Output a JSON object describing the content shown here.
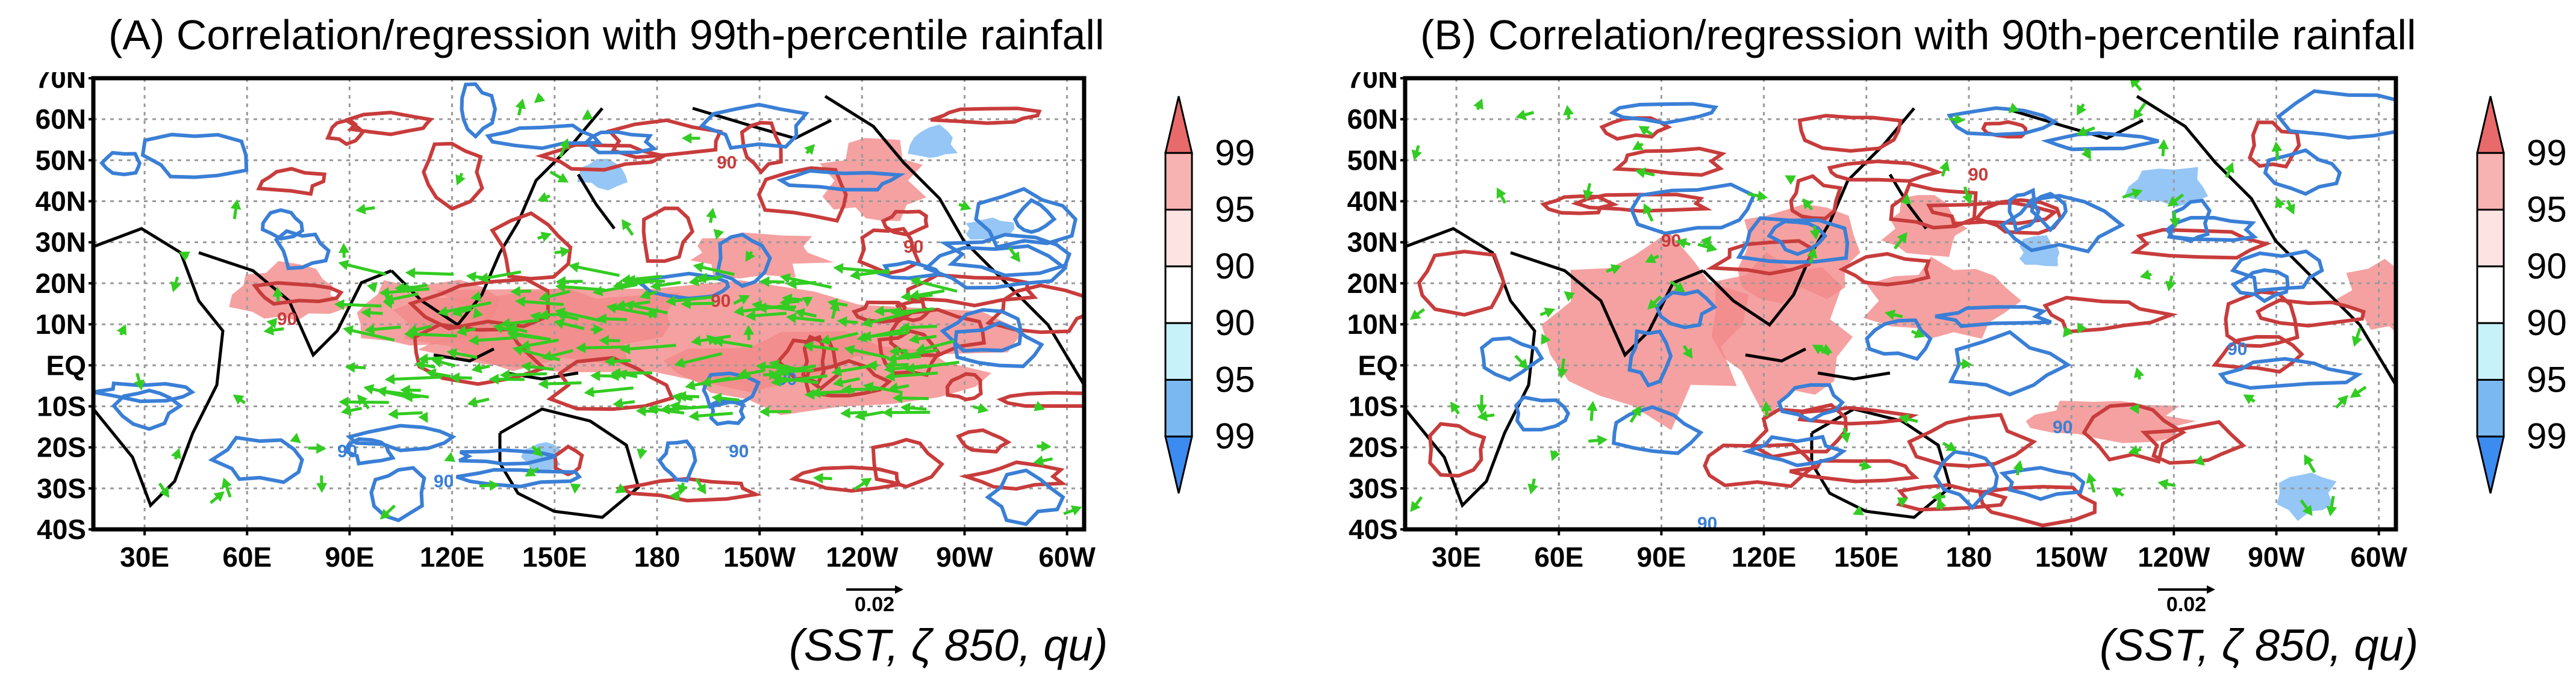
{
  "figure": {
    "latitudes": [
      "70N",
      "60N",
      "50N",
      "40N",
      "30N",
      "20N",
      "10N",
      "EQ",
      "10S",
      "20S",
      "30S",
      "40S"
    ],
    "longitudes": [
      "30E",
      "60E",
      "90E",
      "120E",
      "150E",
      "180",
      "150W",
      "120W",
      "90W",
      "60W"
    ],
    "colorbar_labels": [
      "99",
      "95",
      "90",
      "90",
      "95",
      "99"
    ],
    "colorbar_colors": [
      "#e86a6a",
      "#f7b3b1",
      "#fde3e1",
      "#ffffff",
      "#c8f2fa",
      "#7ab8f2",
      "#3b8bf0"
    ],
    "colors": {
      "positive_contour": "#c83c3c",
      "negative_contour": "#3a7fd6",
      "vector": "#33cc22",
      "shade_pos": "#f28a8a",
      "shade_neg": "#7ab8f2"
    },
    "contour_label": "90",
    "reference_vector": "0.02",
    "variables_text": "(SST, ζ 850, qu)"
  },
  "panels": [
    {
      "title": "(A) Correlation/regression with 99th-percentile rainfall",
      "vectors_strong": true
    },
    {
      "title": "(B) Correlation/regression with 90th-percentile rainfall",
      "vectors_strong": false
    }
  ]
}
